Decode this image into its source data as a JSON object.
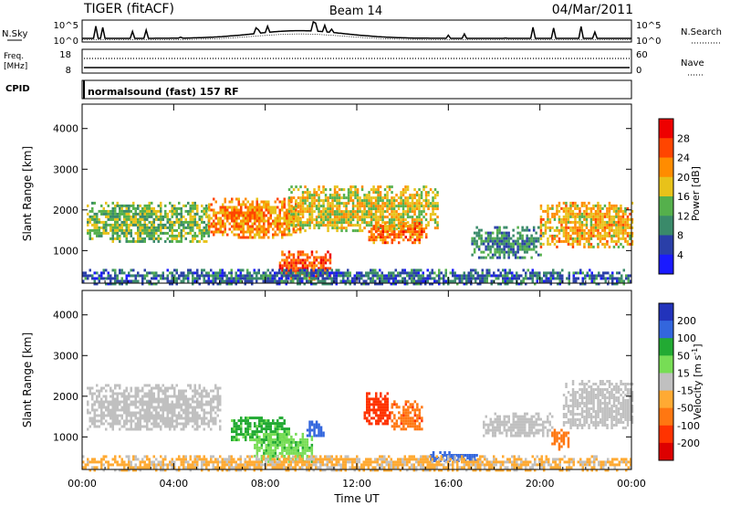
{
  "header": {
    "radar": "TIGER (fitACF)",
    "beam": "Beam 14",
    "date": "04/Mar/2011"
  },
  "nsky_panel": {
    "left_label": "N.Sky",
    "right_label": "N.Search",
    "left_ticks": [
      "10^5",
      "10^0"
    ],
    "right_ticks": [
      "10^5",
      "10^0"
    ]
  },
  "freq_panel": {
    "left_label_1": "Freq.",
    "left_label_2": "[MHz]",
    "right_label": "Nave",
    "left_ticks": [
      "18",
      "8"
    ],
    "right_ticks": [
      "60",
      "0"
    ]
  },
  "cpid_panel": {
    "label": "CPID",
    "mode": "normalsound (fast) 157 RF"
  },
  "colors": {
    "power_scale": [
      "#1a1aff",
      "#2a3fa8",
      "#3a8a6a",
      "#55b04c",
      "#e8c21a",
      "#ff8c00",
      "#ff4500",
      "#ee0000"
    ],
    "velocity_scale": [
      "#2233bb",
      "#3366dd",
      "#22aa33",
      "#77dd55",
      "#c0c0c0",
      "#ffaa33",
      "#ff7711",
      "#ff3300",
      "#dd0000"
    ]
  },
  "chart_data": [
    {
      "type": "heatmap",
      "title": "",
      "xlabel": "",
      "ylabel": "Slant Range [km]",
      "x_ticks": [
        "00:00",
        "04:00",
        "08:00",
        "12:00",
        "16:00",
        "20:00",
        "00:00"
      ],
      "y_ticks": [
        "1000",
        "2000",
        "3000",
        "4000"
      ],
      "ylim": [
        200,
        4600
      ],
      "colorbar": {
        "label": "Power [dB]",
        "ticks": [
          "4",
          "8",
          "12",
          "16",
          "20",
          "24",
          "28"
        ]
      },
      "echo_regions": [
        {
          "t0": 0.2,
          "t1": 5.5,
          "r0": 1200,
          "r1": 2200,
          "power": 14
        },
        {
          "t0": 5.5,
          "t1": 9.5,
          "r0": 1300,
          "r1": 2300,
          "power": 22
        },
        {
          "t0": 8.6,
          "t1": 10.8,
          "r0": 300,
          "r1": 1000,
          "power": 26
        },
        {
          "t0": 9.0,
          "t1": 15.5,
          "r0": 1500,
          "r1": 2600,
          "power": 18
        },
        {
          "t0": 12.5,
          "t1": 15.0,
          "r0": 1200,
          "r1": 1700,
          "power": 24
        },
        {
          "t0": 17.0,
          "t1": 20.0,
          "r0": 800,
          "r1": 1600,
          "power": 10
        },
        {
          "t0": 20.0,
          "t1": 24.0,
          "r0": 1100,
          "r1": 2200,
          "power": 20
        },
        {
          "t0": 0.0,
          "t1": 24.0,
          "r0": 200,
          "r1": 550,
          "power": 8
        }
      ]
    },
    {
      "type": "heatmap",
      "title": "",
      "xlabel": "Time UT",
      "ylabel": "Slant Range [km]",
      "x_ticks": [
        "00:00",
        "04:00",
        "08:00",
        "12:00",
        "16:00",
        "20:00",
        "00:00"
      ],
      "y_ticks": [
        "1000",
        "2000",
        "3000",
        "4000"
      ],
      "ylim": [
        200,
        4600
      ],
      "colorbar": {
        "label": "Velocity [m s^-1]",
        "ticks": [
          "200",
          "100",
          "50",
          "15",
          "-15",
          "-50",
          "-100",
          "-200"
        ]
      },
      "echo_regions": [
        {
          "t0": 0.2,
          "t1": 6.0,
          "r0": 1200,
          "r1": 2300,
          "velocity": 0
        },
        {
          "t0": 6.5,
          "t1": 9.0,
          "r0": 900,
          "r1": 1500,
          "velocity": 60
        },
        {
          "t0": 7.5,
          "t1": 10.0,
          "r0": 400,
          "r1": 1100,
          "velocity": 40
        },
        {
          "t0": 9.8,
          "t1": 10.5,
          "r0": 1000,
          "r1": 1400,
          "velocity": 180
        },
        {
          "t0": 12.3,
          "t1": 13.5,
          "r0": 1300,
          "r1": 2100,
          "velocity": -180
        },
        {
          "t0": 13.5,
          "t1": 14.8,
          "r0": 1200,
          "r1": 1900,
          "velocity": -90
        },
        {
          "t0": 15.0,
          "t1": 17.2,
          "r0": 400,
          "r1": 650,
          "velocity": 180
        },
        {
          "t0": 17.5,
          "t1": 20.5,
          "r0": 1000,
          "r1": 1600,
          "velocity": 0
        },
        {
          "t0": 20.5,
          "t1": 21.2,
          "r0": 700,
          "r1": 1200,
          "velocity": -80
        },
        {
          "t0": 21.0,
          "t1": 24.0,
          "r0": 1200,
          "r1": 2400,
          "velocity": 0
        },
        {
          "t0": 0.0,
          "t1": 24.0,
          "r0": 200,
          "r1": 550,
          "velocity": -20
        }
      ]
    }
  ]
}
